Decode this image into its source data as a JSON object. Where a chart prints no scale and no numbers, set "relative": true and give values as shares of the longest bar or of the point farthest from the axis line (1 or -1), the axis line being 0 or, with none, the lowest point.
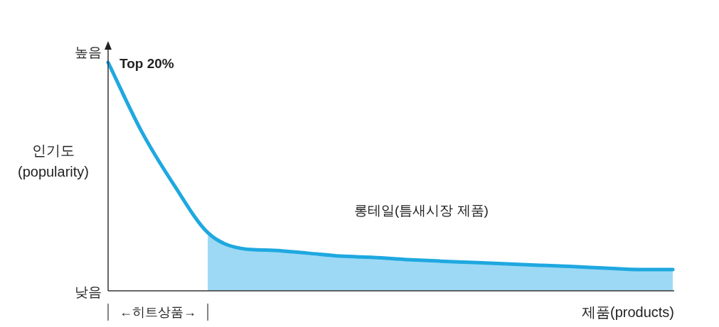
{
  "chart_data": {
    "type": "line",
    "relative": true,
    "xlabel": "제품(products)",
    "ylabel": "인기도\n(popularity)",
    "categories": [
      null,
      null,
      null,
      null,
      null,
      null,
      null,
      null,
      null,
      null,
      null,
      null,
      null,
      null,
      null,
      null,
      null,
      null
    ],
    "series": [
      {
        "type": "area",
        "color": "#9dd9f5",
        "values": [
          null,
          null,
          null,
          0.255,
          0.186,
          0.177,
          0.165,
          0.152,
          0.146,
          0.137,
          0.13,
          0.124,
          0.118,
          0.112,
          0.106,
          0.099,
          0.093,
          0.093
        ]
      },
      {
        "type": "line",
        "color": "#1fa8e0",
        "values": [
          1.0,
          0.7,
          0.46,
          0.255,
          0.186,
          0.177,
          0.165,
          0.152,
          0.146,
          0.137,
          0.13,
          0.124,
          0.118,
          0.112,
          0.106,
          0.099,
          0.093,
          0.093
        ]
      }
    ],
    "annotations": [
      "높음",
      "낮음",
      "Top 20%",
      "롱테일(틈새시장 제품)",
      "←히트상품→"
    ]
  }
}
